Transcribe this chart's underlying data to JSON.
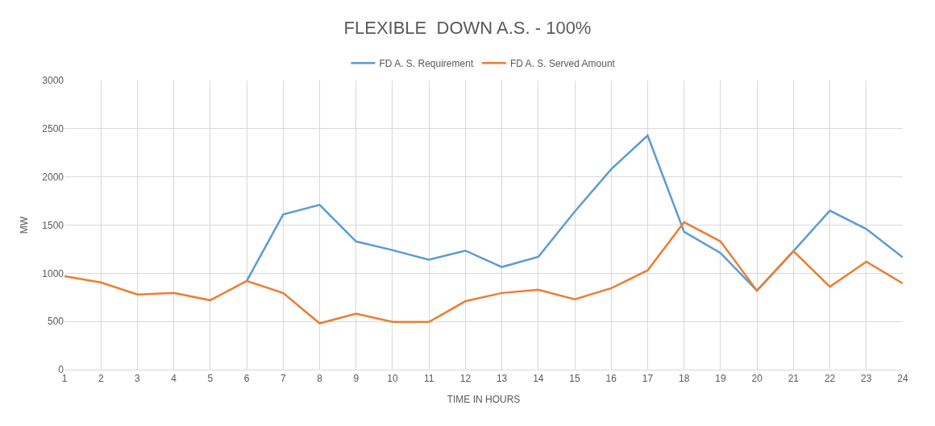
{
  "chart_data": {
    "type": "line",
    "title": "FLEXIBLE  DOWN A.S. - 100%",
    "xlabel": "TIME IN HOURS",
    "ylabel": "MW",
    "x": [
      1,
      2,
      3,
      4,
      5,
      6,
      7,
      8,
      9,
      10,
      11,
      12,
      13,
      14,
      15,
      16,
      17,
      18,
      19,
      20,
      21,
      22,
      23,
      24
    ],
    "series": [
      {
        "name": "FD A. S. Requirement",
        "color": "#5b9bd5",
        "values": [
          null,
          null,
          null,
          null,
          null,
          920,
          1610,
          1710,
          1330,
          1240,
          1140,
          1235,
          1065,
          1170,
          1640,
          2080,
          2430,
          1430,
          1210,
          820,
          1230,
          1650,
          1460,
          1165
        ]
      },
      {
        "name": "FD A. S. Served Amount",
        "color": "#ed7d31",
        "values": [
          970,
          905,
          780,
          795,
          720,
          920,
          795,
          480,
          580,
          495,
          495,
          710,
          795,
          830,
          730,
          845,
          1030,
          1530,
          1330,
          820,
          1230,
          860,
          1120,
          895
        ]
      }
    ],
    "xlim": [
      1,
      24
    ],
    "xticks": [
      1,
      2,
      3,
      4,
      5,
      6,
      7,
      8,
      9,
      10,
      11,
      12,
      13,
      14,
      15,
      16,
      17,
      18,
      19,
      20,
      21,
      22,
      23,
      24
    ],
    "ylim": [
      0,
      3000
    ],
    "yticks": [
      0,
      500,
      1000,
      1500,
      2000,
      2500,
      3000
    ],
    "grid": true,
    "legend": "top",
    "marker": "none",
    "line_style": "solid"
  }
}
